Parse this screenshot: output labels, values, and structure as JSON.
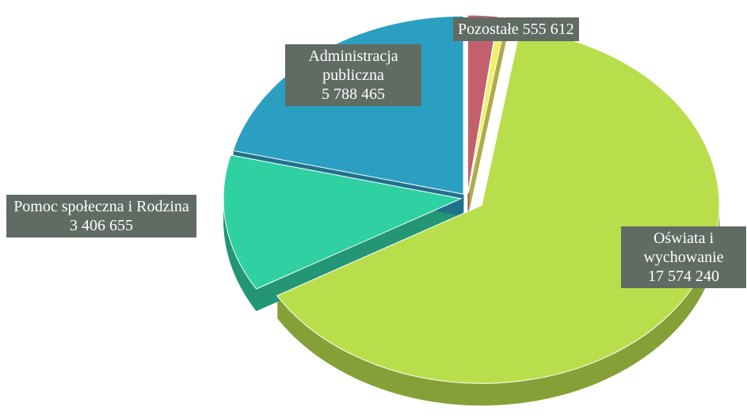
{
  "chart_data": {
    "type": "pie",
    "categories": [
      "Pozostałe",
      null,
      "Oświata i wychowanie",
      "Pomoc społeczna i Rodzina",
      "Administracja publiczna"
    ],
    "values": [
      555612,
      150000,
      17574240,
      3406655,
      5788465
    ],
    "value_labels": [
      "555 612",
      null,
      "17 574 240",
      "3 406 655",
      "5 788 465"
    ],
    "colors": [
      "#c4606c",
      "#f2f06a",
      "#b9de4c",
      "#2fd0a2",
      "#2b9fc2"
    ]
  }
}
